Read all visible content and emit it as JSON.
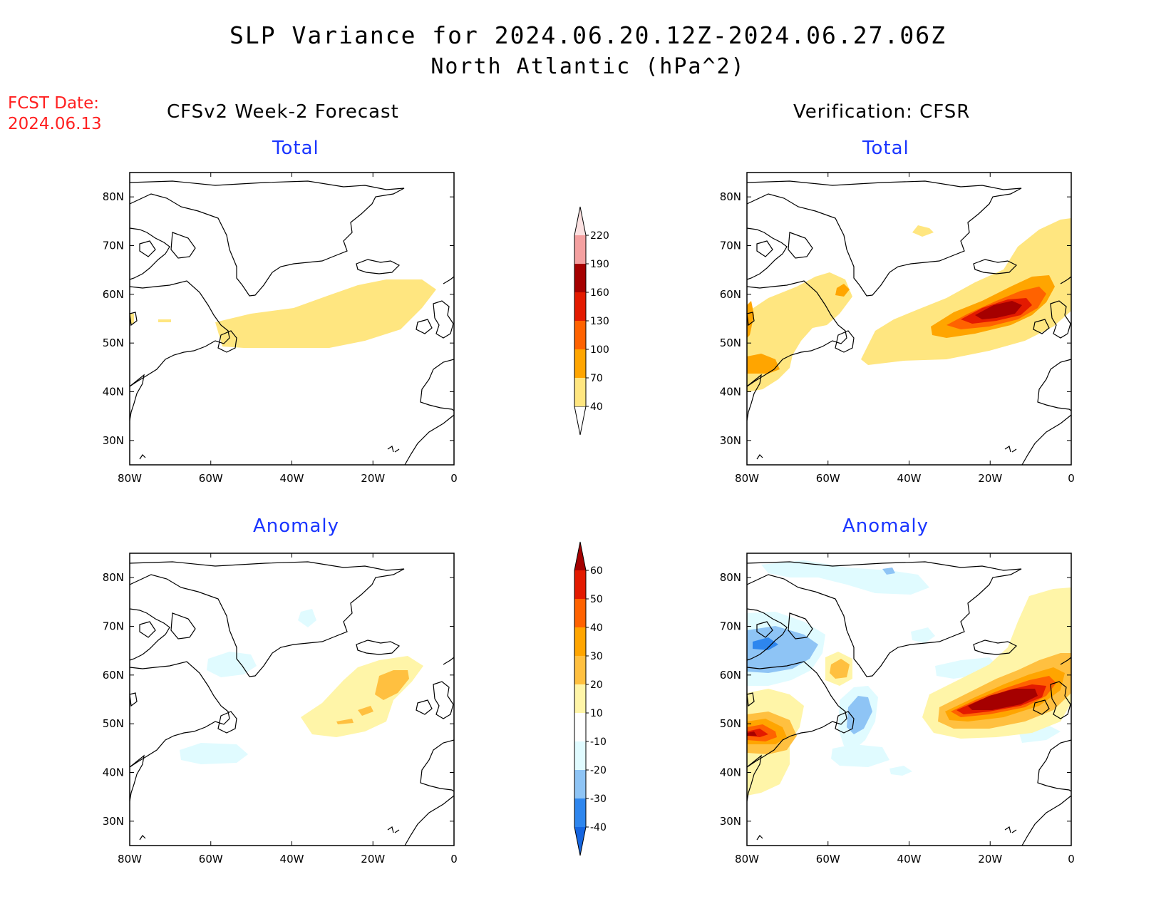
{
  "title_line1": "SLP Variance for 2024.06.20.12Z-2024.06.27.06Z",
  "title_line2": "North Atlantic (hPa^2)",
  "fcst_label": "FCST Date:",
  "fcst_date": "2024.06.13",
  "left_column": "CFSv2 Week-2 Forecast",
  "right_column": "Verification: CFSR",
  "panels": [
    {
      "id": "fcst-total",
      "title": "Total"
    },
    {
      "id": "verif-total",
      "title": "Total"
    },
    {
      "id": "fcst-anom",
      "title": "Anomaly"
    },
    {
      "id": "verif-anom",
      "title": "Anomaly"
    }
  ],
  "map_extent": {
    "lon": [
      -80,
      0
    ],
    "lat": [
      25,
      85
    ]
  },
  "lat_ticks": [
    "80N",
    "70N",
    "60N",
    "50N",
    "40N",
    "30N"
  ],
  "lon_ticks": [
    "80W",
    "60W",
    "40W",
    "20W",
    "0"
  ],
  "total_colorbar": {
    "levels": [
      "40",
      "70",
      "100",
      "130",
      "160",
      "190",
      "220"
    ],
    "colors": [
      "#ffe680",
      "#ffa500",
      "#ff6200",
      "#e31a00",
      "#a50000",
      "#f4a0a0",
      "#fbe0e0"
    ]
  },
  "anom_colorbar": {
    "levels": [
      "-40",
      "-30",
      "-20",
      "-10",
      "10",
      "20",
      "30",
      "40",
      "50",
      "60"
    ],
    "colors": [
      "#1565e0",
      "#2e86ee",
      "#8ec4f5",
      "#e0fbff",
      "#ffffff",
      "#fff5a8",
      "#ffc040",
      "#ffa500",
      "#ff6200",
      "#e31a00",
      "#a50000"
    ]
  },
  "palette": {
    "yellow_light": "#fff5a8",
    "yellow": "#ffe680",
    "orange_light": "#ffc040",
    "orange": "#ffa500",
    "orange_dark": "#ff6200",
    "red": "#e31a00",
    "dark_red": "#a50000",
    "blue_faint": "#e0fbff",
    "blue_light": "#8ec4f5",
    "blue": "#2e86ee"
  }
}
